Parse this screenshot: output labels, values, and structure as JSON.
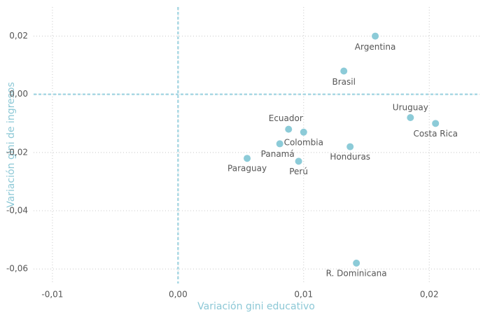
{
  "chart_data": {
    "type": "scatter",
    "xlabel": "Variación gini educativo",
    "ylabel": "Variación gini de ingresos",
    "series": [
      {
        "name": "países",
        "color": "#8ccbd8",
        "labels": [
          "Argentina",
          "Brasil",
          "Uruguay",
          "Costa Rica",
          "Ecuador",
          "Colombia",
          "Panamá",
          "Honduras",
          "Paraguay",
          "Perú",
          "R. Dominicana"
        ],
        "x": [
          0.0157,
          0.0132,
          0.0185,
          0.0205,
          0.0088,
          0.01,
          0.0081,
          0.0137,
          0.0055,
          0.0096,
          0.0142
        ],
        "values": [
          0.02,
          0.008,
          -0.008,
          -0.01,
          -0.012,
          -0.013,
          -0.017,
          -0.018,
          -0.022,
          -0.023,
          -0.058
        ]
      }
    ],
    "xlim": [
      -0.0115,
      0.024
    ],
    "ylim": [
      -0.065,
      0.03
    ],
    "xticks": [
      {
        "value": -0.01,
        "label": "-0,01"
      },
      {
        "value": 0,
        "label": "0,00"
      },
      {
        "value": 0.01,
        "label": "0,01"
      },
      {
        "value": 0.02,
        "label": "0,02"
      }
    ],
    "yticks": [
      {
        "value": -0.06,
        "label": "-0,06"
      },
      {
        "value": -0.04,
        "label": "-0,04"
      },
      {
        "value": -0.02,
        "label": "-0,02"
      },
      {
        "value": 0,
        "label": "0,00"
      },
      {
        "value": 0.02,
        "label": "0,02"
      }
    ],
    "grid": true,
    "zero_lines": true
  }
}
